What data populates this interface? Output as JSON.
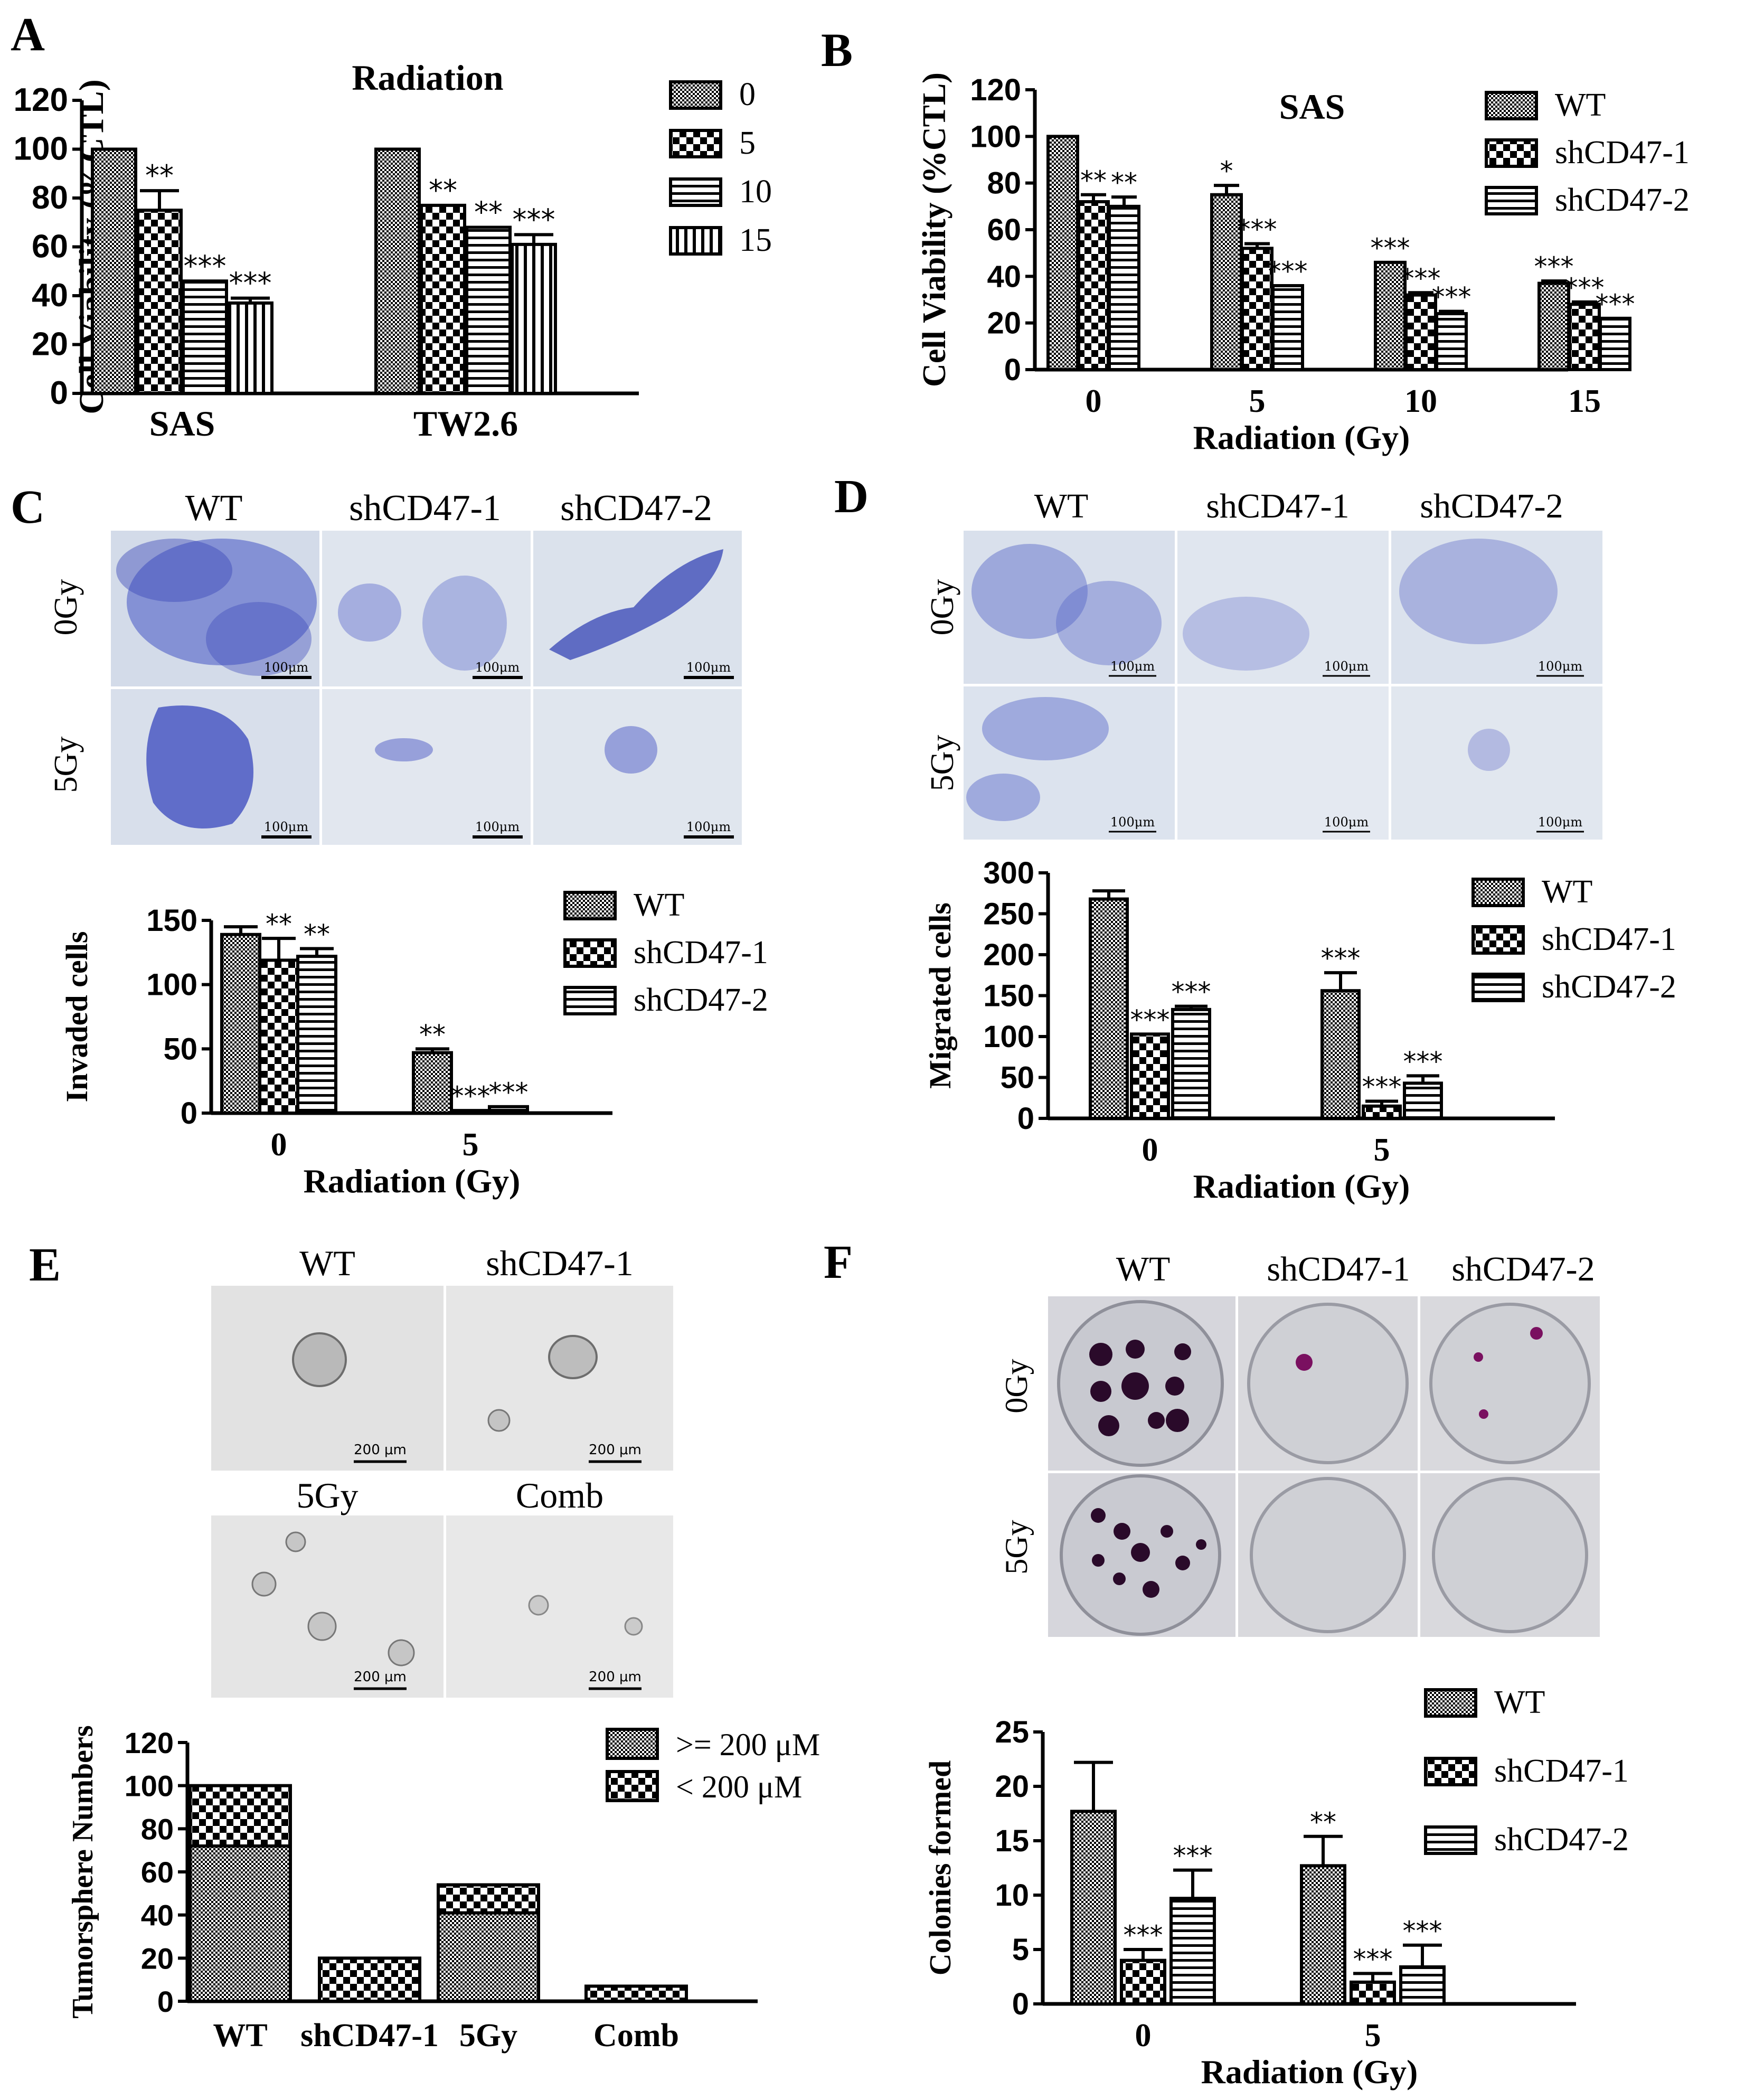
{
  "panel_labels": {
    "A": "A",
    "B": "B",
    "C": "C",
    "D": "D",
    "E": "E",
    "F": "F"
  },
  "colors": {
    "ink": "#000000",
    "micro_bg": "#d7deea",
    "stain": "#3f4fc0",
    "colony": "#8a1b70",
    "sphere_bg": "#e3e3e3"
  },
  "chart_data": [
    {
      "id": "A",
      "type": "bar",
      "title": "Radiation",
      "ylabel": "Cell Viability (%CTL)",
      "xlabel": "",
      "categories": [
        "SAS",
        "TW2.6"
      ],
      "series": [
        {
          "name": "0",
          "values": [
            100,
            100
          ],
          "errors": [
            0,
            0
          ],
          "sig": [
            "",
            ""
          ]
        },
        {
          "name": "5",
          "values": [
            75,
            77
          ],
          "errors": [
            8,
            0
          ],
          "sig": [
            "**",
            "**"
          ]
        },
        {
          "name": "10",
          "values": [
            46,
            68
          ],
          "errors": [
            0,
            0
          ],
          "sig": [
            "***",
            "**"
          ]
        },
        {
          "name": "15",
          "values": [
            37,
            61
          ],
          "errors": [
            2,
            4
          ],
          "sig": [
            "***",
            "***"
          ]
        }
      ],
      "ylim": [
        0,
        120
      ],
      "yticks": [
        0,
        20,
        40,
        60,
        80,
        100,
        120
      ],
      "legend": "top-right"
    },
    {
      "id": "B",
      "type": "bar",
      "title": "SAS",
      "ylabel": "Cell Viability (%CTL)",
      "xlabel": "Radiation (Gy)",
      "categories": [
        "0",
        "5",
        "10",
        "15"
      ],
      "series": [
        {
          "name": "WT",
          "values": [
            100,
            75,
            46,
            37
          ],
          "errors": [
            0,
            4,
            0,
            1
          ],
          "sig": [
            "",
            "*",
            "***",
            "***"
          ]
        },
        {
          "name": "shCD47-1",
          "values": [
            72,
            52,
            32,
            28
          ],
          "errors": [
            3,
            2,
            1,
            1
          ],
          "sig": [
            "**",
            "***",
            "***",
            "***"
          ]
        },
        {
          "name": "shCD47-2",
          "values": [
            70,
            36,
            24,
            22
          ],
          "errors": [
            4,
            0,
            1,
            0
          ],
          "sig": [
            "**",
            "***",
            "***",
            "***"
          ]
        }
      ],
      "ylim": [
        0,
        120
      ],
      "yticks": [
        0,
        20,
        40,
        60,
        80,
        100,
        120
      ],
      "legend": "top-right"
    },
    {
      "id": "C",
      "type": "bar",
      "title": "",
      "ylabel": "Invaded cells",
      "xlabel": "Radiation (Gy)",
      "categories": [
        "0",
        "5"
      ],
      "series": [
        {
          "name": "WT",
          "values": [
            139,
            47
          ],
          "errors": [
            6,
            3
          ],
          "sig": [
            "",
            "**"
          ]
        },
        {
          "name": "shCD47-1",
          "values": [
            119,
            2
          ],
          "errors": [
            17,
            0
          ],
          "sig": [
            "**",
            "***"
          ]
        },
        {
          "name": "shCD47-2",
          "values": [
            122,
            5
          ],
          "errors": [
            6,
            0
          ],
          "sig": [
            "**",
            "***"
          ]
        }
      ],
      "ylim": [
        0,
        150
      ],
      "yticks": [
        0,
        50,
        100,
        150
      ],
      "legend": "top-right"
    },
    {
      "id": "D",
      "type": "bar",
      "title": "",
      "ylabel": "Migrated cells",
      "xlabel": "Radiation (Gy)",
      "categories": [
        "0",
        "5"
      ],
      "series": [
        {
          "name": "WT",
          "values": [
            268,
            156
          ],
          "errors": [
            10,
            22
          ],
          "sig": [
            "",
            "***"
          ]
        },
        {
          "name": "shCD47-1",
          "values": [
            103,
            15
          ],
          "errors": [
            0,
            6
          ],
          "sig": [
            "***",
            "***"
          ]
        },
        {
          "name": "shCD47-2",
          "values": [
            133,
            43
          ],
          "errors": [
            4,
            9
          ],
          "sig": [
            "***",
            "***"
          ]
        }
      ],
      "ylim": [
        0,
        300
      ],
      "yticks": [
        0,
        50,
        100,
        150,
        200,
        250,
        300
      ],
      "legend": "top-right"
    },
    {
      "id": "E",
      "type": "bar",
      "stacked": true,
      "title": "",
      "ylabel": "Tumorsphere Numbers",
      "xlabel": "",
      "categories": [
        "WT",
        "shCD47-1",
        "5Gy",
        "Comb"
      ],
      "series": [
        {
          "name": ">= 200 μM",
          "values": [
            72,
            0,
            41,
            0
          ]
        },
        {
          "name": "< 200 μM",
          "values": [
            28,
            20,
            13,
            7
          ]
        }
      ],
      "ylim": [
        0,
        120
      ],
      "yticks": [
        0,
        20,
        40,
        60,
        80,
        100,
        120
      ],
      "legend": "top-right"
    },
    {
      "id": "F",
      "type": "bar",
      "title": "",
      "ylabel": "Colonies formed",
      "xlabel": "Radiation (Gy)",
      "categories": [
        "0",
        "5"
      ],
      "series": [
        {
          "name": "WT",
          "values": [
            17.7,
            12.7
          ],
          "errors": [
            4.5,
            2.7
          ],
          "sig": [
            "",
            "**"
          ]
        },
        {
          "name": "shCD47-1",
          "values": [
            4.0,
            2.0
          ],
          "errors": [
            1.0,
            0.8
          ],
          "sig": [
            "***",
            "***"
          ]
        },
        {
          "name": "shCD47-2",
          "values": [
            9.7,
            3.4
          ],
          "errors": [
            2.6,
            2.0
          ],
          "sig": [
            "***",
            "***"
          ]
        }
      ],
      "ylim": [
        0,
        25
      ],
      "yticks": [
        0,
        5,
        10,
        15,
        20,
        25
      ],
      "legend": "top-right"
    }
  ],
  "micrographs": {
    "C": {
      "columns": [
        "WT",
        "shCD47-1",
        "shCD47-2"
      ],
      "rows": [
        "0Gy",
        "5Gy"
      ],
      "scale": "100μm"
    },
    "D": {
      "columns": [
        "WT",
        "shCD47-1",
        "shCD47-2"
      ],
      "rows": [
        "0Gy",
        "5Gy"
      ],
      "scale": "100μm"
    },
    "E": {
      "panels": [
        "WT",
        "shCD47-1",
        "5Gy",
        "Comb"
      ],
      "scale": "200 μm"
    },
    "F": {
      "columns": [
        "WT",
        "shCD47-1",
        "shCD47-2"
      ],
      "rows": [
        "0Gy",
        "5Gy"
      ]
    }
  }
}
